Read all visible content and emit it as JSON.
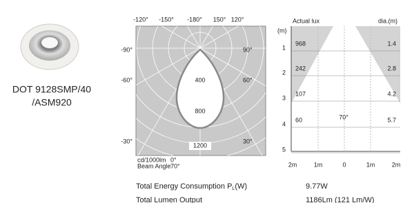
{
  "product": {
    "name": [
      "DOT 9128SMP/40",
      "/ASM920"
    ]
  },
  "polar": {
    "top_labels": [
      "-120°",
      "-150°",
      "-180°",
      "150°",
      "120°"
    ],
    "left_labels": [
      "-90°",
      "-60°",
      "-30°"
    ],
    "right_labels": [
      "90°",
      "60°",
      "30°"
    ],
    "radial_labels": [
      "400",
      "800",
      "1200"
    ],
    "unit": "cd/1000lm",
    "unit_angle": "0°",
    "beam_label": "Beam Angle",
    "beam_angle": "70°"
  },
  "lux": {
    "unit": "(m)",
    "lux_header": "Actual lux",
    "dia_header": "dia.(m)",
    "rows": [
      [
        "1",
        "968",
        "1.4"
      ],
      [
        "2",
        "242",
        "2.8"
      ],
      [
        "3",
        "107",
        "4.2"
      ],
      [
        "4",
        "60",
        "5.7"
      ],
      [
        "5",
        "",
        ""
      ]
    ],
    "angle": "70°",
    "x_labels": [
      "2m",
      "1m",
      "0",
      "1m",
      "2m"
    ]
  },
  "specs": [
    [
      "Total Energy Consumption P",
      "L",
      "(W)",
      "9.77W"
    ],
    [
      "Total Lumen Output",
      "",
      "",
      "1186Lm  (121 Lm/W)"
    ]
  ]
}
